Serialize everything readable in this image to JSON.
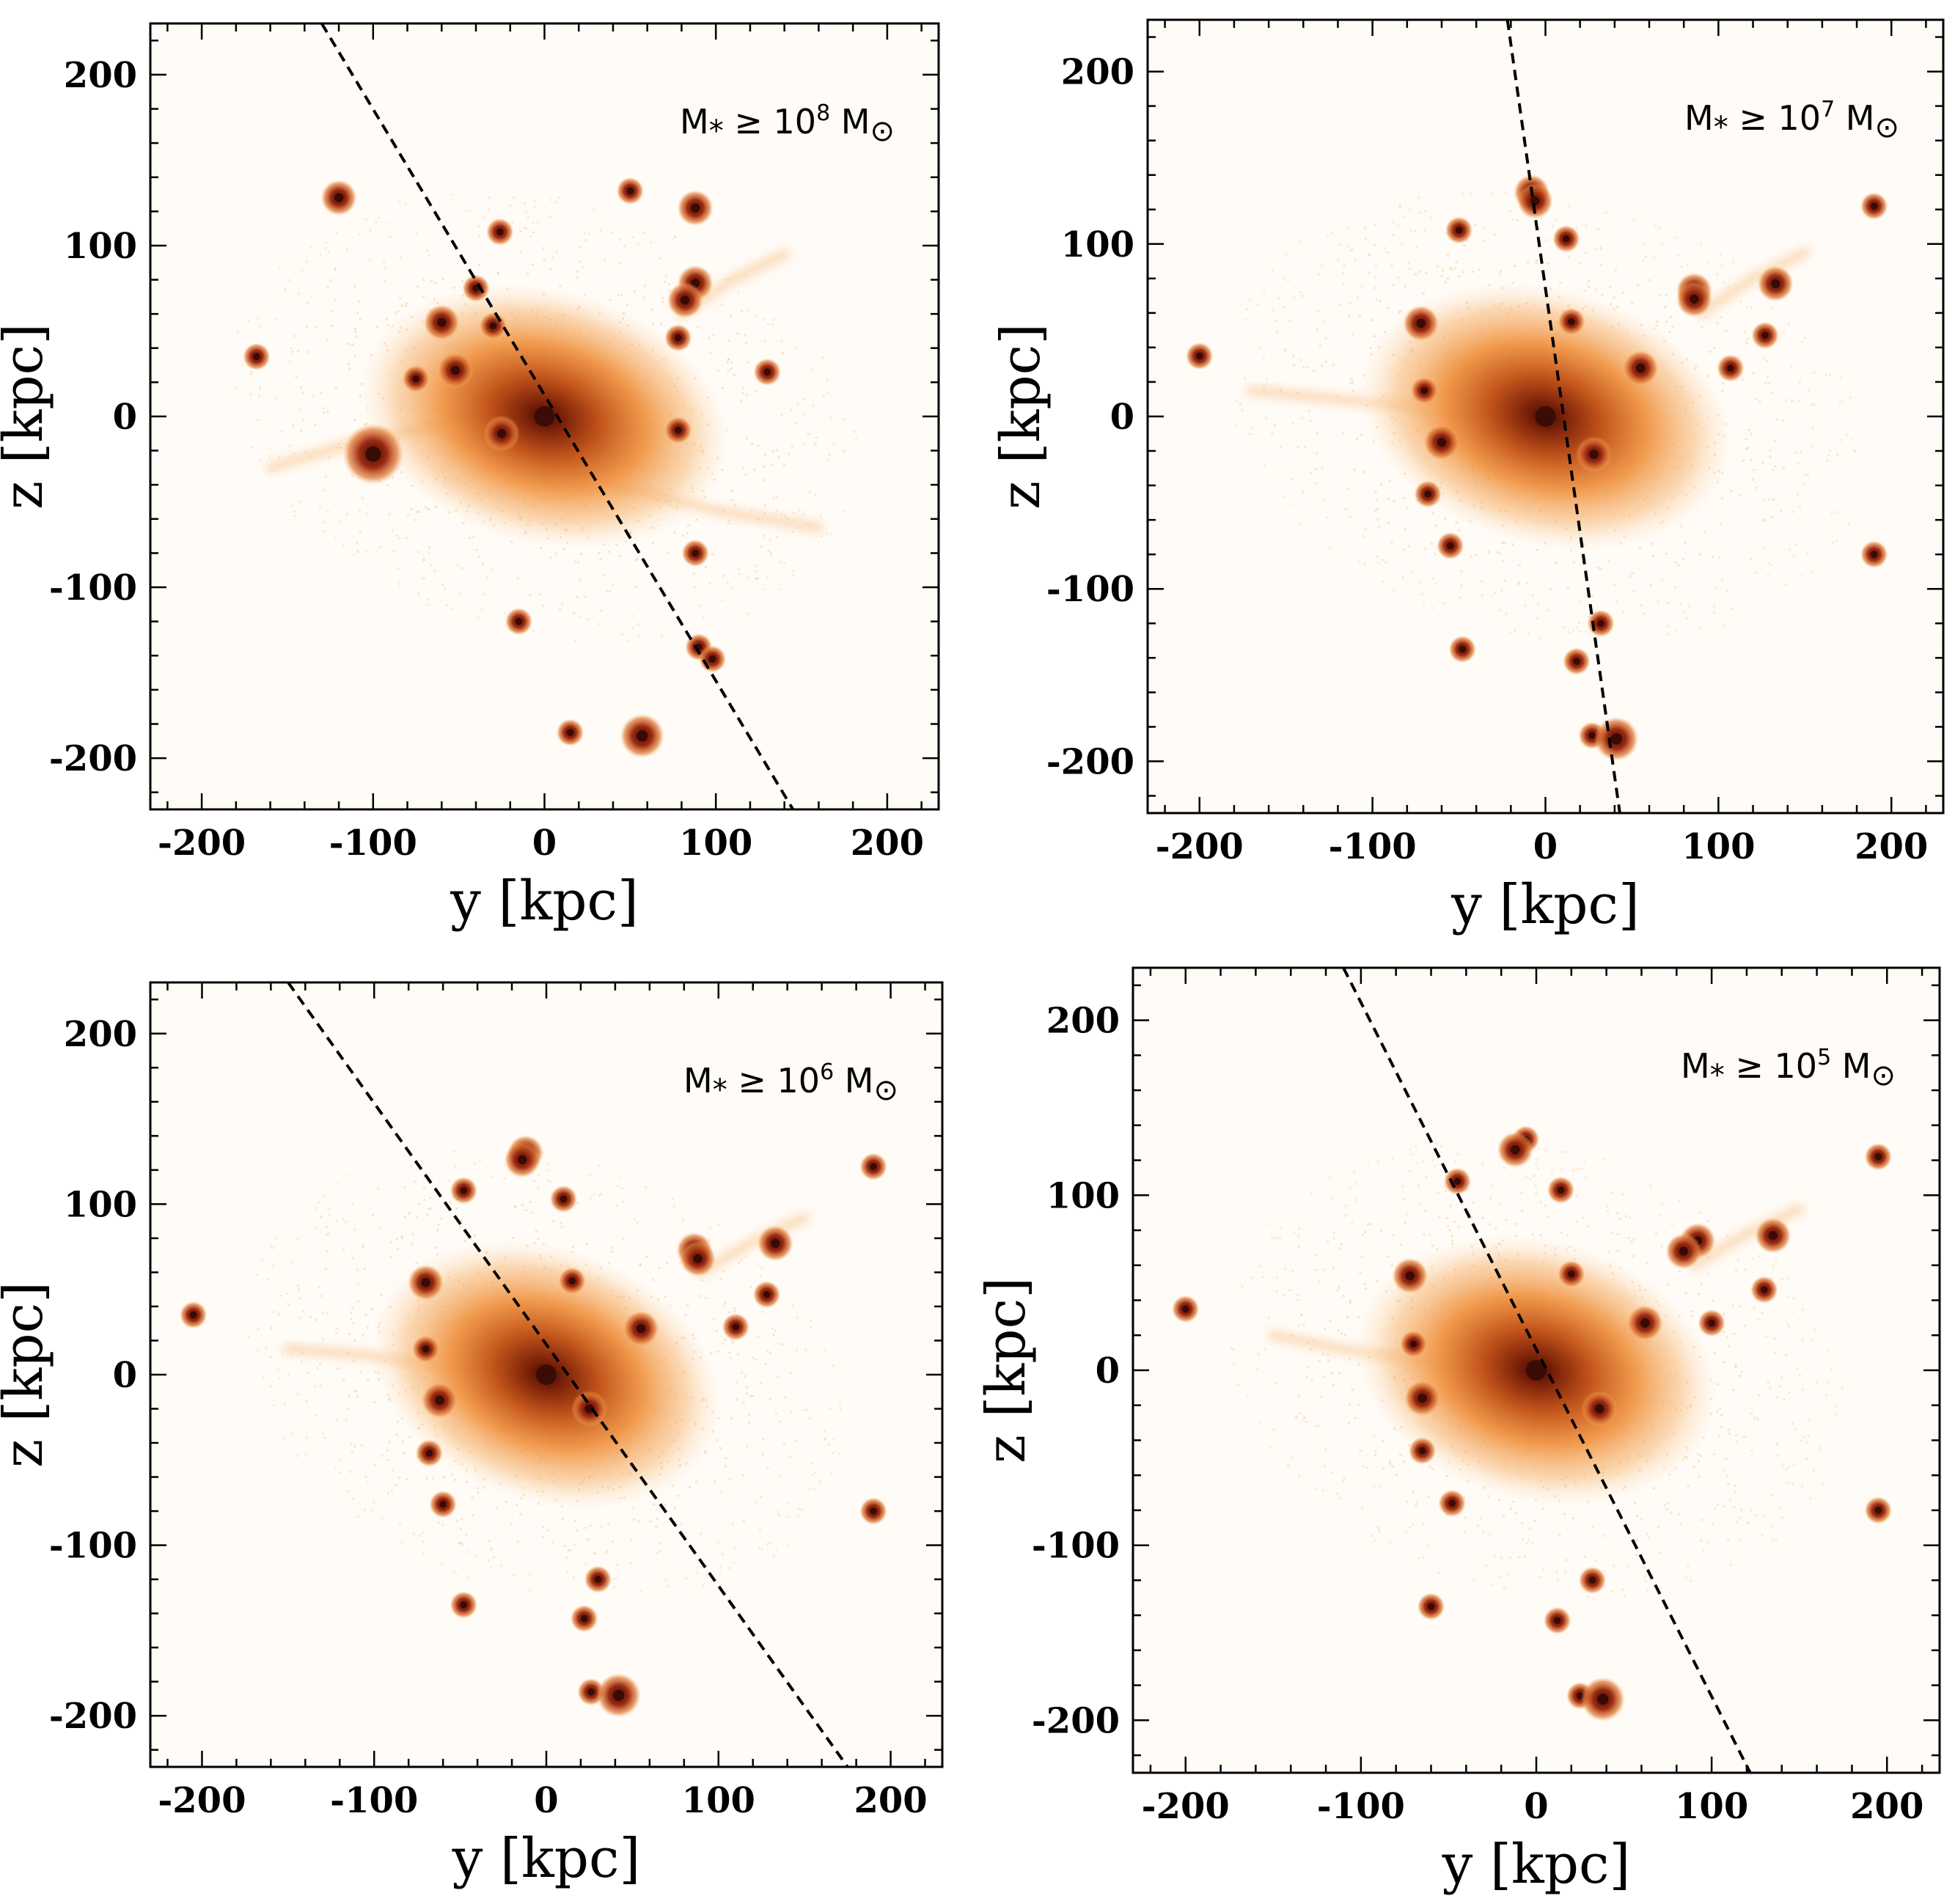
{
  "figure": {
    "description_note": "Four projections of a galaxy stellar halo with satellite galaxies and a best-fit plane (dashed line)",
    "colors": {
      "background": "#fffbf6",
      "halo_outer": "#f7b978",
      "halo_mid": "#ef8f3a",
      "halo_inner": "#c2541b",
      "core": "#3a0c05",
      "satellite": "#b8361a",
      "satellite_center": "#3a0a04",
      "frame": "#000000"
    }
  },
  "chart_data": [
    {
      "type": "scatter",
      "panel": "top-left",
      "title": "",
      "label_prefix": "M",
      "label_sub": "*",
      "label_mid": " ≥ 10",
      "label_exp": "8",
      "label_unit": " M",
      "label_unit_sub": "⊙",
      "xlabel": "y [kpc]",
      "ylabel": "z [kpc]",
      "xlim": [
        -230,
        230
      ],
      "ylim": [
        -230,
        230
      ],
      "xticks": [
        -200,
        -100,
        0,
        100,
        200
      ],
      "yticks": [
        -200,
        -100,
        0,
        100,
        200
      ],
      "xtick_labels": [
        "-200",
        "-100",
        "0",
        "100",
        "200"
      ],
      "ytick_labels": [
        "-200",
        "-100",
        "0",
        "100",
        "200"
      ],
      "halo": {
        "center": [
          0,
          0
        ],
        "radius_x": 110,
        "radius_y": 75,
        "tilt_deg": -15
      },
      "streams": [
        {
          "points": [
            [
              40,
              -40
            ],
            [
              100,
              -55
            ],
            [
              160,
              -65
            ]
          ]
        },
        {
          "points": [
            [
              80,
              60
            ],
            [
              110,
              80
            ],
            [
              140,
              95
            ]
          ]
        },
        {
          "points": [
            [
              -160,
              -30
            ],
            [
              -110,
              -15
            ],
            [
              -60,
              -5
            ]
          ]
        }
      ],
      "fit_line": {
        "points": [
          [
            -130,
            230
          ],
          [
            145,
            -230
          ]
        ]
      },
      "satellites": [
        {
          "x": -120,
          "y": 128,
          "size": 3
        },
        {
          "x": -26,
          "y": 108,
          "size": 2
        },
        {
          "x": 50,
          "y": 132,
          "size": 2
        },
        {
          "x": 88,
          "y": 122,
          "size": 3
        },
        {
          "x": 88,
          "y": 78,
          "size": 3
        },
        {
          "x": 82,
          "y": 68,
          "size": 3
        },
        {
          "x": 78,
          "y": 46,
          "size": 2
        },
        {
          "x": -168,
          "y": 35,
          "size": 2
        },
        {
          "x": -60,
          "y": 55,
          "size": 3
        },
        {
          "x": -30,
          "y": 53,
          "size": 2
        },
        {
          "x": -52,
          "y": 27,
          "size": 3
        },
        {
          "x": -75,
          "y": 22,
          "size": 2
        },
        {
          "x": -40,
          "y": 75,
          "size": 2
        },
        {
          "x": 130,
          "y": 26,
          "size": 2
        },
        {
          "x": -100,
          "y": -22,
          "size": 6
        },
        {
          "x": -25,
          "y": -10,
          "size": 3
        },
        {
          "x": 78,
          "y": -8,
          "size": 2
        },
        {
          "x": 88,
          "y": -80,
          "size": 2
        },
        {
          "x": -15,
          "y": -120,
          "size": 2
        },
        {
          "x": 90,
          "y": -135,
          "size": 2
        },
        {
          "x": 98,
          "y": -142,
          "size": 2
        },
        {
          "x": 15,
          "y": -185,
          "size": 2
        },
        {
          "x": 57,
          "y": -187,
          "size": 4
        }
      ]
    },
    {
      "type": "scatter",
      "panel": "top-right",
      "title": "",
      "label_prefix": "M",
      "label_sub": "*",
      "label_mid": " ≥ 10",
      "label_exp": "7",
      "label_unit": " M",
      "label_unit_sub": "⊙",
      "xlabel": "y [kpc]",
      "ylabel": "z [kpc]",
      "xlim": [
        -230,
        230
      ],
      "ylim": [
        -230,
        230
      ],
      "xticks": [
        -200,
        -100,
        0,
        100,
        200
      ],
      "yticks": [
        -200,
        -100,
        0,
        100,
        200
      ],
      "xtick_labels": [
        "-200",
        "-100",
        "0",
        "100",
        "200"
      ],
      "ytick_labels": [
        "-200",
        "-100",
        "0",
        "100",
        "200"
      ],
      "halo": {
        "center": [
          0,
          0
        ],
        "radius_x": 110,
        "radius_y": 75,
        "tilt_deg": -15
      },
      "streams": [
        {
          "points": [
            [
              -170,
              15
            ],
            [
              -120,
              10
            ],
            [
              -70,
              5
            ]
          ]
        },
        {
          "points": [
            [
              90,
              60
            ],
            [
              120,
              80
            ],
            [
              150,
              95
            ]
          ]
        }
      ],
      "fit_line": {
        "points": [
          [
            -22,
            230
          ],
          [
            43,
            -230
          ]
        ]
      },
      "satellites": [
        {
          "x": -8,
          "y": 130,
          "size": 3
        },
        {
          "x": -6,
          "y": 125,
          "size": 3
        },
        {
          "x": 190,
          "y": 122,
          "size": 2
        },
        {
          "x": -50,
          "y": 108,
          "size": 2
        },
        {
          "x": 12,
          "y": 103,
          "size": 2
        },
        {
          "x": 133,
          "y": 77,
          "size": 3
        },
        {
          "x": 86,
          "y": 73,
          "size": 3
        },
        {
          "x": 86,
          "y": 68,
          "size": 3
        },
        {
          "x": -72,
          "y": 54,
          "size": 3
        },
        {
          "x": 15,
          "y": 55,
          "size": 2
        },
        {
          "x": 127,
          "y": 47,
          "size": 2
        },
        {
          "x": -200,
          "y": 35,
          "size": 2
        },
        {
          "x": 55,
          "y": 28,
          "size": 3
        },
        {
          "x": 107,
          "y": 28,
          "size": 2
        },
        {
          "x": -70,
          "y": 15,
          "size": 2
        },
        {
          "x": -60,
          "y": -15,
          "size": 3
        },
        {
          "x": 28,
          "y": -22,
          "size": 3
        },
        {
          "x": -68,
          "y": -45,
          "size": 2
        },
        {
          "x": -55,
          "y": -75,
          "size": 2
        },
        {
          "x": 190,
          "y": -80,
          "size": 2
        },
        {
          "x": -48,
          "y": -135,
          "size": 2
        },
        {
          "x": 32,
          "y": -120,
          "size": 2
        },
        {
          "x": 18,
          "y": -142,
          "size": 2
        },
        {
          "x": 27,
          "y": -185,
          "size": 2
        },
        {
          "x": 41,
          "y": -187,
          "size": 4
        }
      ]
    },
    {
      "type": "scatter",
      "panel": "bottom-left",
      "title": "",
      "label_prefix": "M",
      "label_sub": "*",
      "label_mid": " ≥ 10",
      "label_exp": "6",
      "label_unit": " M",
      "label_unit_sub": "⊙",
      "xlabel": "y [kpc]",
      "ylabel": "z [kpc]",
      "xlim": [
        -230,
        230
      ],
      "ylim": [
        -230,
        230
      ],
      "xticks": [
        -200,
        -100,
        0,
        100,
        200
      ],
      "yticks": [
        -200,
        -100,
        0,
        100,
        200
      ],
      "xtick_labels": [
        "-200",
        "-100",
        "0",
        "100",
        "200"
      ],
      "ytick_labels": [
        "-200",
        "-100",
        "0",
        "100",
        "200"
      ],
      "halo": {
        "center": [
          0,
          0
        ],
        "radius_x": 105,
        "radius_y": 75,
        "tilt_deg": -20
      },
      "streams": [
        {
          "points": [
            [
              -150,
              15
            ],
            [
              -110,
              12
            ],
            [
              -60,
              5
            ]
          ]
        },
        {
          "points": [
            [
              90,
              60
            ],
            [
              120,
              78
            ],
            [
              150,
              92
            ]
          ]
        }
      ],
      "fit_line": {
        "points": [
          [
            -150,
            230
          ],
          [
            175,
            -230
          ]
        ]
      },
      "satellites": [
        {
          "x": -12,
          "y": 130,
          "size": 3
        },
        {
          "x": -14,
          "y": 126,
          "size": 3
        },
        {
          "x": 190,
          "y": 122,
          "size": 2
        },
        {
          "x": -48,
          "y": 108,
          "size": 2
        },
        {
          "x": 10,
          "y": 103,
          "size": 2
        },
        {
          "x": 133,
          "y": 77,
          "size": 3
        },
        {
          "x": 86,
          "y": 73,
          "size": 3
        },
        {
          "x": 88,
          "y": 68,
          "size": 3
        },
        {
          "x": -70,
          "y": 54,
          "size": 3
        },
        {
          "x": 15,
          "y": 55,
          "size": 2
        },
        {
          "x": 128,
          "y": 47,
          "size": 2
        },
        {
          "x": -205,
          "y": 35,
          "size": 2
        },
        {
          "x": 55,
          "y": 27,
          "size": 3
        },
        {
          "x": 110,
          "y": 28,
          "size": 2
        },
        {
          "x": -70,
          "y": 15,
          "size": 2
        },
        {
          "x": -62,
          "y": -15,
          "size": 3
        },
        {
          "x": 25,
          "y": -20,
          "size": 3
        },
        {
          "x": -68,
          "y": -46,
          "size": 2
        },
        {
          "x": -60,
          "y": -76,
          "size": 2
        },
        {
          "x": 190,
          "y": -80,
          "size": 2
        },
        {
          "x": -48,
          "y": -135,
          "size": 2
        },
        {
          "x": 30,
          "y": -120,
          "size": 2
        },
        {
          "x": 22,
          "y": -143,
          "size": 2
        },
        {
          "x": 26,
          "y": -186,
          "size": 2
        },
        {
          "x": 42,
          "y": -188,
          "size": 4
        }
      ]
    },
    {
      "type": "scatter",
      "panel": "bottom-right",
      "title": "",
      "label_prefix": "M",
      "label_sub": "*",
      "label_mid": " ≥ 10",
      "label_exp": "5",
      "label_unit": " M",
      "label_unit_sub": "⊙",
      "xlabel": "y [kpc]",
      "ylabel": "z [kpc]",
      "xlim": [
        -230,
        230
      ],
      "ylim": [
        -230,
        230
      ],
      "xticks": [
        -200,
        -100,
        0,
        100,
        200
      ],
      "yticks": [
        -200,
        -100,
        0,
        100,
        200
      ],
      "xtick_labels": [
        "-200",
        "-100",
        "0",
        "100",
        "200"
      ],
      "ytick_labels": [
        "-200",
        "-100",
        "0",
        "100",
        "200"
      ],
      "halo": {
        "center": [
          0,
          0
        ],
        "radius_x": 105,
        "radius_y": 75,
        "tilt_deg": -15
      },
      "streams": [
        {
          "points": [
            [
              -150,
              20
            ],
            [
              -110,
              12
            ],
            [
              -60,
              5
            ]
          ]
        },
        {
          "points": [
            [
              90,
              60
            ],
            [
              120,
              78
            ],
            [
              150,
              92
            ]
          ]
        }
      ],
      "fit_line": {
        "points": [
          [
            -110,
            230
          ],
          [
            122,
            -230
          ]
        ]
      },
      "satellites": [
        {
          "x": -6,
          "y": 132,
          "size": 2
        },
        {
          "x": -12,
          "y": 126,
          "size": 3
        },
        {
          "x": 195,
          "y": 122,
          "size": 2
        },
        {
          "x": -45,
          "y": 108,
          "size": 2
        },
        {
          "x": 14,
          "y": 103,
          "size": 2
        },
        {
          "x": 135,
          "y": 77,
          "size": 3
        },
        {
          "x": 92,
          "y": 74,
          "size": 3
        },
        {
          "x": 84,
          "y": 68,
          "size": 3
        },
        {
          "x": -72,
          "y": 54,
          "size": 3
        },
        {
          "x": 20,
          "y": 55,
          "size": 2
        },
        {
          "x": 130,
          "y": 46,
          "size": 2
        },
        {
          "x": -200,
          "y": 35,
          "size": 2
        },
        {
          "x": 62,
          "y": 27,
          "size": 3
        },
        {
          "x": 100,
          "y": 27,
          "size": 2
        },
        {
          "x": -70,
          "y": 15,
          "size": 2
        },
        {
          "x": -65,
          "y": -16,
          "size": 3
        },
        {
          "x": 36,
          "y": -22,
          "size": 3
        },
        {
          "x": -65,
          "y": -46,
          "size": 2
        },
        {
          "x": -48,
          "y": -76,
          "size": 2
        },
        {
          "x": 195,
          "y": -80,
          "size": 2
        },
        {
          "x": -60,
          "y": -135,
          "size": 2
        },
        {
          "x": 32,
          "y": -120,
          "size": 2
        },
        {
          "x": 12,
          "y": -143,
          "size": 2
        },
        {
          "x": 25,
          "y": -186,
          "size": 2
        },
        {
          "x": 38,
          "y": -188,
          "size": 4
        }
      ]
    }
  ]
}
